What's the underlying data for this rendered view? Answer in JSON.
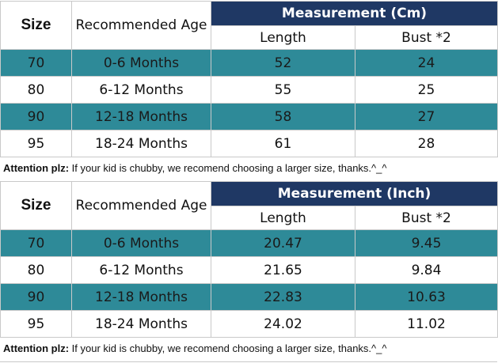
{
  "colors": {
    "header_bg": "#1f3864",
    "header_text": "#ffffff",
    "stripe_bg": "#2e8a98",
    "grid": "#c9c9c9"
  },
  "tables": [
    {
      "id": "cm",
      "header": {
        "size": "Size",
        "age": "Recommended Age",
        "measurement": "Measurement (Cm)",
        "length": "Length",
        "bust": "Bust *2"
      },
      "rows": [
        {
          "size": "70",
          "age": "0-6 Months",
          "length": "52",
          "bust": "24"
        },
        {
          "size": "80",
          "age": "6-12 Months",
          "length": "55",
          "bust": "25"
        },
        {
          "size": "90",
          "age": "12-18 Months",
          "length": "58",
          "bust": "27"
        },
        {
          "size": "95",
          "age": "18-24 Months",
          "length": "61",
          "bust": "28"
        }
      ],
      "note": {
        "label": "Attention plz:",
        "text": " If your kid is chubby, we recomend choosing a larger size, thanks.^_^"
      }
    },
    {
      "id": "inch",
      "header": {
        "size": "Size",
        "age": "Recommended Age",
        "measurement": "Measurement (Inch)",
        "length": "Length",
        "bust": "Bust *2"
      },
      "rows": [
        {
          "size": "70",
          "age": "0-6 Months",
          "length": "20.47",
          "bust": "9.45"
        },
        {
          "size": "80",
          "age": "6-12 Months",
          "length": "21.65",
          "bust": "9.84"
        },
        {
          "size": "90",
          "age": "12-18 Months",
          "length": "22.83",
          "bust": "10.63"
        },
        {
          "size": "95",
          "age": "18-24 Months",
          "length": "24.02",
          "bust": "11.02"
        }
      ],
      "note": {
        "label": "Attention plz:",
        "text": " If your kid is chubby, we recomend choosing a larger size, thanks.^_^"
      }
    }
  ]
}
